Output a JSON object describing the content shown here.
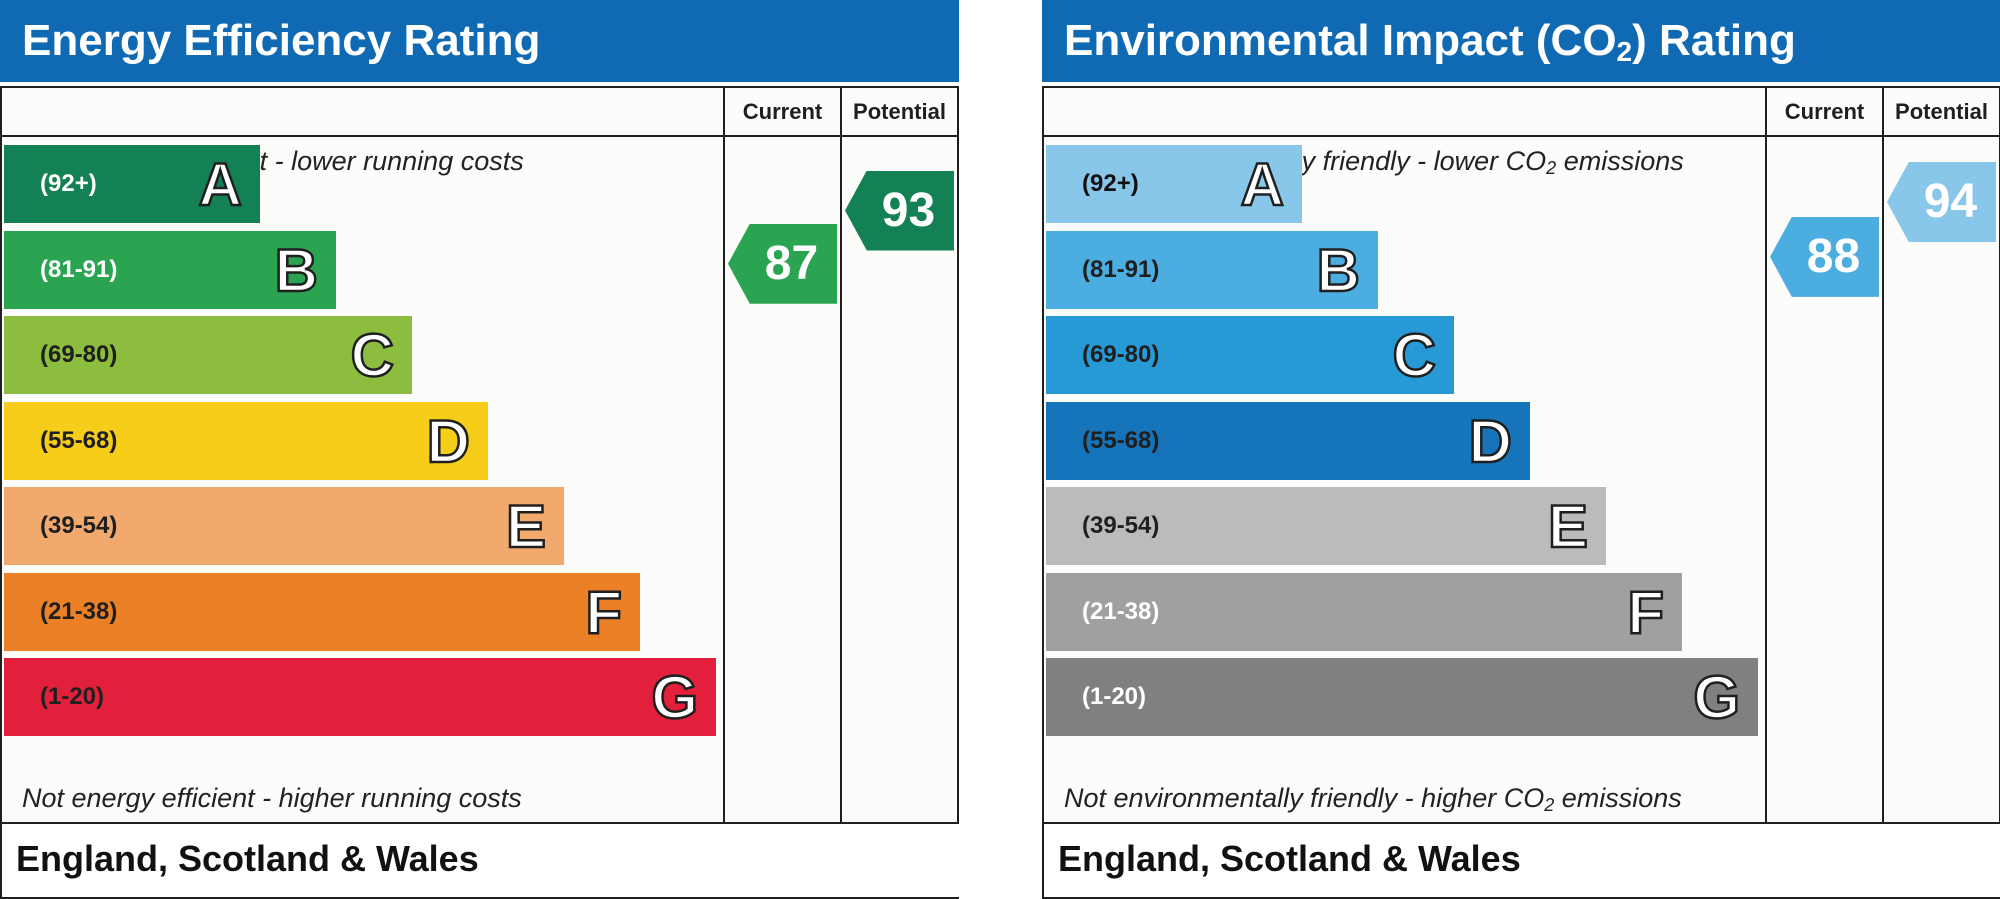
{
  "chart_data": [
    {
      "type": "bar",
      "title": "Energy Efficiency Rating",
      "columns": [
        "Current",
        "Potential"
      ],
      "caption_top": "Very energy efficient - lower running costs",
      "caption_bottom": "Not energy efficient - higher running costs",
      "region": "England, Scotland & Wales",
      "bands": [
        {
          "letter": "A",
          "range": "(92+)",
          "color": "#138154",
          "text_color": "#ffffff"
        },
        {
          "letter": "B",
          "range": "(81-91)",
          "color": "#2aa450",
          "text_color": "#ffffff"
        },
        {
          "letter": "C",
          "range": "(69-80)",
          "color": "#8dbd3f",
          "text_color": "#1f1f1f"
        },
        {
          "letter": "D",
          "range": "(55-68)",
          "color": "#f6cd19",
          "text_color": "#1f1f1f"
        },
        {
          "letter": "E",
          "range": "(39-54)",
          "color": "#f1a96d",
          "text_color": "#1f1f1f"
        },
        {
          "letter": "F",
          "range": "(21-38)",
          "color": "#ec8026",
          "text_color": "#1f1f1f"
        },
        {
          "letter": "G",
          "range": "(1-20)",
          "color": "#e3203c",
          "text_color": "#1f1f1f"
        }
      ],
      "current": {
        "value": 87,
        "band": "B",
        "color": "#2aa450"
      },
      "potential": {
        "value": 93,
        "band": "A",
        "color": "#138154"
      }
    },
    {
      "type": "bar",
      "title": "Environmental Impact (CO2) Rating",
      "columns": [
        "Current",
        "Potential"
      ],
      "caption_top": "Very environmentally friendly - lower CO2 emissions",
      "caption_bottom": "Not environmentally friendly - higher CO2 emissions",
      "region": "England, Scotland & Wales",
      "bands": [
        {
          "letter": "A",
          "range": "(92+)",
          "color": "#88c7ea",
          "text_color": "#111111"
        },
        {
          "letter": "B",
          "range": "(81-91)",
          "color": "#4cade0",
          "text_color": "#1f1f1f"
        },
        {
          "letter": "C",
          "range": "(69-80)",
          "color": "#279ad5",
          "text_color": "#1f1f1f"
        },
        {
          "letter": "D",
          "range": "(55-68)",
          "color": "#1674ba",
          "text_color": "#1f1f1f"
        },
        {
          "letter": "E",
          "range": "(39-54)",
          "color": "#bbbbbb",
          "text_color": "#1f1f1f"
        },
        {
          "letter": "F",
          "range": "(21-38)",
          "color": "#a0a0a0",
          "text_color": "#ffffff"
        },
        {
          "letter": "G",
          "range": "(1-20)",
          "color": "#808080",
          "text_color": "#ffffff"
        }
      ],
      "current": {
        "value": 88,
        "band": "B",
        "color": "#4cade0"
      },
      "potential": {
        "value": 94,
        "band": "A",
        "color": "#88c7ea"
      }
    }
  ]
}
